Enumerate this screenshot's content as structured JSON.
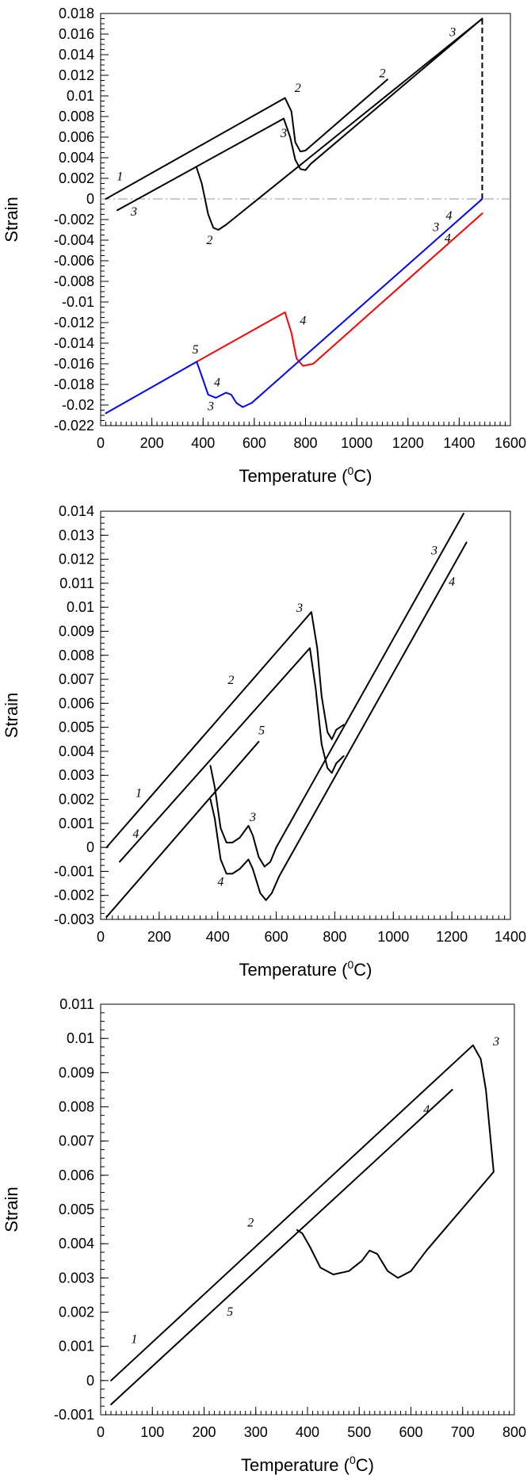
{
  "chart_data": [
    {
      "type": "line",
      "xlabel": "Temperature (",
      "xlabel_sup": "0",
      "xlabel_tail": "C)",
      "ylabel": "Strain",
      "xlim": [
        0,
        1600
      ],
      "ylim": [
        -0.022,
        0.018
      ],
      "xticks": [
        0,
        200,
        400,
        600,
        800,
        1000,
        1200,
        1400,
        1600
      ],
      "yticks": [
        -0.022,
        -0.02,
        -0.018,
        -0.016,
        -0.014,
        -0.012,
        -0.01,
        -0.008,
        -0.006,
        -0.004,
        -0.002,
        0,
        0.002,
        0.004,
        0.006,
        0.008,
        0.01,
        0.012,
        0.014,
        0.016,
        0.018
      ],
      "ytick_labels": [
        "-0.022",
        "-0.02",
        "-0.018",
        "-0.016",
        "-0.014",
        "-0.012",
        "-0.01",
        "-0.008",
        "-0.006",
        "-0.004",
        "-0.002",
        "0",
        "0.002",
        "0.004",
        "0.006",
        "0.008",
        "0.01",
        "0.012",
        "0.014",
        "0.016",
        "0.018"
      ],
      "colors": {
        "series_a": "#000000",
        "series_b": "#ff0000",
        "series_c": "#0000ff",
        "reference": "#aaaaaa"
      },
      "reference_line": {
        "y": 0,
        "style": "dash-dot"
      },
      "vertical_dashed": {
        "x": 1490,
        "y_from": 0,
        "y_to": 0.0175
      },
      "series": [
        {
          "color": "#000000",
          "points": [
            [
              20,
              0.0
            ],
            [
              720,
              0.0098
            ],
            [
              745,
              0.0085
            ],
            [
              760,
              0.0055
            ],
            [
              780,
              0.0046
            ],
            [
              800,
              0.0047
            ],
            [
              1120,
              0.0116
            ]
          ]
        },
        {
          "color": "#000000",
          "points": [
            [
              65,
              -0.0011
            ],
            [
              715,
              0.0078
            ],
            [
              740,
              0.006
            ],
            [
              760,
              0.0038
            ],
            [
              780,
              0.0029
            ],
            [
              800,
              0.0028
            ],
            [
              820,
              0.0034
            ],
            [
              1490,
              0.0175
            ]
          ]
        },
        {
          "color": "#000000",
          "points": [
            [
              375,
              0.003
            ],
            [
              395,
              0.0015
            ],
            [
              420,
              -0.0015
            ],
            [
              440,
              -0.0028
            ],
            [
              460,
              -0.003
            ],
            [
              490,
              -0.0025
            ],
            [
              1490,
              0.0175
            ]
          ]
        },
        {
          "color": "#ff0000",
          "points": [
            [
              375,
              -0.0158
            ],
            [
              720,
              -0.011
            ],
            [
              745,
              -0.013
            ],
            [
              765,
              -0.0155
            ],
            [
              790,
              -0.0162
            ],
            [
              830,
              -0.016
            ],
            [
              1490,
              -0.0014
            ]
          ]
        },
        {
          "color": "#0000ff",
          "points": [
            [
              20,
              -0.0208
            ],
            [
              375,
              -0.0158
            ],
            [
              395,
              -0.0172
            ],
            [
              420,
              -0.019
            ],
            [
              450,
              -0.0193
            ],
            [
              490,
              -0.0188
            ],
            [
              510,
              -0.019
            ],
            [
              530,
              -0.0198
            ],
            [
              555,
              -0.0202
            ],
            [
              590,
              -0.0198
            ],
            [
              1490,
              0.0
            ]
          ]
        }
      ],
      "labels": [
        {
          "text": "1",
          "x": 75,
          "y": 0.0018
        },
        {
          "text": "3",
          "x": 130,
          "y": -0.0016
        },
        {
          "text": "2",
          "x": 770,
          "y": 0.0104
        },
        {
          "text": "3",
          "x": 715,
          "y": 0.006
        },
        {
          "text": "2",
          "x": 1100,
          "y": 0.0118
        },
        {
          "text": "3",
          "x": 1375,
          "y": 0.0158
        },
        {
          "text": "2",
          "x": 425,
          "y": -0.0044
        },
        {
          "text": "4",
          "x": 790,
          "y": -0.0122
        },
        {
          "text": "5",
          "x": 370,
          "y": -0.015
        },
        {
          "text": "4",
          "x": 455,
          "y": -0.0182
        },
        {
          "text": "3",
          "x": 430,
          "y": -0.0205
        },
        {
          "text": "3",
          "x": 1310,
          "y": -0.0031
        },
        {
          "text": "4",
          "x": 1360,
          "y": -0.002
        },
        {
          "text": "4",
          "x": 1355,
          "y": -0.0042
        }
      ]
    },
    {
      "type": "line",
      "xlabel": "Temperature (",
      "xlabel_sup": "0",
      "xlabel_tail": "C)",
      "ylabel": "Strain",
      "xlim": [
        0,
        1400
      ],
      "ylim": [
        -0.003,
        0.014
      ],
      "xticks": [
        0,
        200,
        400,
        600,
        800,
        1000,
        1200,
        1400
      ],
      "yticks": [
        -0.003,
        -0.002,
        -0.001,
        0,
        0.001,
        0.002,
        0.003,
        0.004,
        0.005,
        0.006,
        0.007,
        0.008,
        0.009,
        0.01,
        0.011,
        0.012,
        0.013,
        0.014
      ],
      "ytick_labels": [
        "-0.003",
        "-0.002",
        "-0.001",
        "0",
        "0.001",
        "0.002",
        "0.003",
        "0.004",
        "0.005",
        "0.006",
        "0.007",
        "0.008",
        "0.009",
        "0.01",
        "0.011",
        "0.012",
        "0.013",
        "0.014"
      ],
      "series": [
        {
          "color": "#000000",
          "points": [
            [
              20,
              0.0
            ],
            [
              720,
              0.0098
            ],
            [
              740,
              0.0083
            ],
            [
              755,
              0.0063
            ],
            [
              775,
              0.0048
            ],
            [
              790,
              0.0045
            ],
            [
              805,
              0.0049
            ],
            [
              830,
              0.0051
            ]
          ]
        },
        {
          "color": "#000000",
          "points": [
            [
              65,
              -0.0006
            ],
            [
              715,
              0.0083
            ],
            [
              735,
              0.0066
            ],
            [
              755,
              0.0043
            ],
            [
              775,
              0.0033
            ],
            [
              790,
              0.0031
            ],
            [
              805,
              0.0035
            ],
            [
              830,
              0.0038
            ]
          ]
        },
        {
          "color": "#000000",
          "points": [
            [
              375,
              0.0034
            ],
            [
              390,
              0.0025
            ],
            [
              410,
              0.0008
            ],
            [
              430,
              0.0002
            ],
            [
              450,
              0.0002
            ],
            [
              475,
              0.0004
            ],
            [
              505,
              0.0009
            ],
            [
              520,
              0.0005
            ],
            [
              540,
              -0.0004
            ],
            [
              560,
              -0.0008
            ],
            [
              580,
              -0.0006
            ],
            [
              600,
              0.0
            ],
            [
              1240,
              0.0139
            ]
          ]
        },
        {
          "color": "#000000",
          "points": [
            [
              375,
              0.002
            ],
            [
              390,
              0.0012
            ],
            [
              410,
              -0.0005
            ],
            [
              430,
              -0.0011
            ],
            [
              450,
              -0.0011
            ],
            [
              475,
              -0.0009
            ],
            [
              505,
              -0.0005
            ],
            [
              520,
              -0.0009
            ],
            [
              545,
              -0.0019
            ],
            [
              565,
              -0.0022
            ],
            [
              585,
              -0.0019
            ],
            [
              610,
              -0.0012
            ],
            [
              1250,
              0.0127
            ]
          ]
        },
        {
          "color": "#000000",
          "points": [
            [
              20,
              -0.0029
            ],
            [
              540,
              0.0044
            ]
          ]
        }
      ],
      "labels": [
        {
          "text": "1",
          "x": 130,
          "y": 0.0021
        },
        {
          "text": "4",
          "x": 120,
          "y": 0.0004
        },
        {
          "text": "2",
          "x": 445,
          "y": 0.0068
        },
        {
          "text": "3",
          "x": 680,
          "y": 0.0098
        },
        {
          "text": "5",
          "x": 550,
          "y": 0.0047
        },
        {
          "text": "3",
          "x": 520,
          "y": 0.0011
        },
        {
          "text": "4",
          "x": 410,
          "y": -0.0016
        },
        {
          "text": "3",
          "x": 1140,
          "y": 0.0122
        },
        {
          "text": "4",
          "x": 1200,
          "y": 0.0109
        }
      ]
    },
    {
      "type": "line",
      "xlabel": "Temperature (",
      "xlabel_sup": "0",
      "xlabel_tail": "C)",
      "ylabel": "Strain",
      "xlim": [
        0,
        800
      ],
      "ylim": [
        -0.001,
        0.011
      ],
      "xticks": [
        0,
        100,
        200,
        300,
        400,
        500,
        600,
        700,
        800
      ],
      "yticks": [
        -0.001,
        0,
        0.001,
        0.002,
        0.003,
        0.004,
        0.005,
        0.006,
        0.007,
        0.008,
        0.009,
        0.01,
        0.011
      ],
      "ytick_labels": [
        "-0.001",
        "0",
        "0.001",
        "0.002",
        "0.003",
        "0.004",
        "0.005",
        "0.006",
        "0.007",
        "0.008",
        "0.009",
        "0.01",
        "0.011"
      ],
      "series": [
        {
          "color": "#000000",
          "points": [
            [
              20,
              0.0
            ],
            [
              720,
              0.0098
            ],
            [
              735,
              0.0094
            ],
            [
              745,
              0.0085
            ],
            [
              760,
              0.0061
            ],
            [
              630,
              0.0038
            ],
            [
              600,
              0.0032
            ],
            [
              575,
              0.003
            ],
            [
              555,
              0.0032
            ],
            [
              535,
              0.0037
            ],
            [
              520,
              0.0038
            ],
            [
              505,
              0.0035
            ],
            [
              480,
              0.0032
            ],
            [
              450,
              0.0031
            ],
            [
              425,
              0.0033
            ],
            [
              405,
              0.0039
            ],
            [
              390,
              0.0043
            ],
            [
              380,
              0.0044
            ]
          ]
        },
        {
          "color": "#000000",
          "points": [
            [
              20,
              -0.0007
            ],
            [
              680,
              0.0085
            ]
          ]
        }
      ],
      "labels": [
        {
          "text": "3",
          "x": 765,
          "y": 0.0098
        },
        {
          "text": "4",
          "x": 630,
          "y": 0.0078
        },
        {
          "text": "2",
          "x": 290,
          "y": 0.0045
        },
        {
          "text": "1",
          "x": 65,
          "y": 0.0011
        },
        {
          "text": "5",
          "x": 250,
          "y": 0.0019
        }
      ]
    }
  ]
}
